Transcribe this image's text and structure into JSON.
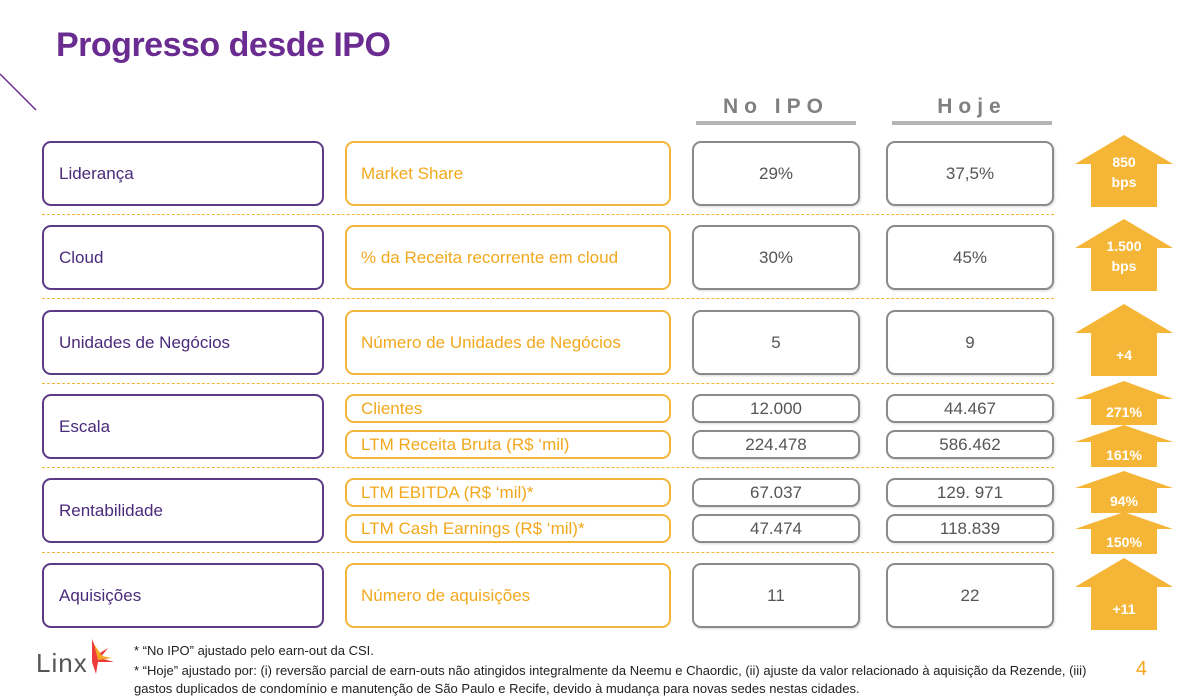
{
  "title": "Progresso desde IPO",
  "columns": {
    "ipo": "No IPO",
    "today": "Hoje"
  },
  "rows": [
    {
      "label": "Liderança",
      "metrics": [
        {
          "name": "Market Share",
          "ipo": "29%",
          "today": "37,5%"
        }
      ],
      "arrows": [
        {
          "lines": [
            "850",
            "bps"
          ]
        }
      ]
    },
    {
      "label": "Cloud",
      "metrics": [
        {
          "name": "% da Receita recorrente em cloud",
          "ipo": "30%",
          "today": "45%"
        }
      ],
      "arrows": [
        {
          "lines": [
            "1.500",
            "bps"
          ]
        }
      ]
    },
    {
      "label": "Unidades de Negócios",
      "metrics": [
        {
          "name": "Número de Unidades de Negócios",
          "ipo": "5",
          "today": "9"
        }
      ],
      "arrows": [
        {
          "lines": [
            "+4"
          ]
        }
      ]
    },
    {
      "label": "Escala",
      "metrics": [
        {
          "name": "Clientes",
          "ipo": "12.000",
          "today": "44.467"
        },
        {
          "name": "LTM Receita Bruta (R$ ‘mil)",
          "ipo": "224.478",
          "today": "586.462"
        }
      ],
      "arrows": [
        {
          "lines": [
            "271%"
          ]
        },
        {
          "lines": [
            "161%"
          ]
        }
      ]
    },
    {
      "label": "Rentabilidade",
      "metrics": [
        {
          "name": "LTM EBITDA (R$ ‘mil)*",
          "ipo": "67.037",
          "today": "129. 971"
        },
        {
          "name": "LTM Cash Earnings (R$ ‘mil)*",
          "ipo": "47.474",
          "today": "118.839"
        }
      ],
      "arrows": [
        {
          "lines": [
            "94%"
          ]
        },
        {
          "lines": [
            "150%"
          ]
        }
      ]
    },
    {
      "label": "Aquisições",
      "metrics": [
        {
          "name": "Número de aquisições",
          "ipo": "11",
          "today": "22"
        }
      ],
      "arrows": [
        {
          "lines": [
            "+11"
          ]
        }
      ]
    }
  ],
  "footnotes": [
    "* “No IPO” ajustado pelo earn-out da CSI.",
    "* “Hoje” ajustado por: (i) reversão parcial de earn-outs não atingidos integralmente da Neemu e Chaordic, (ii) ajuste da valor relacionado à aquisição da Rezende, (iii) gastos duplicados de condomínio e manutenção de São Paulo e Recife, devido à mudança para novas sedes nestas cidades."
  ],
  "logo": {
    "text": "Linx",
    "icon": "linx-logo-icon"
  },
  "page_number": "4",
  "colors": {
    "purple": "#6a2c91",
    "orange": "#f4b63a",
    "gray": "#8a8a8a",
    "arrow": "#f5b638"
  }
}
